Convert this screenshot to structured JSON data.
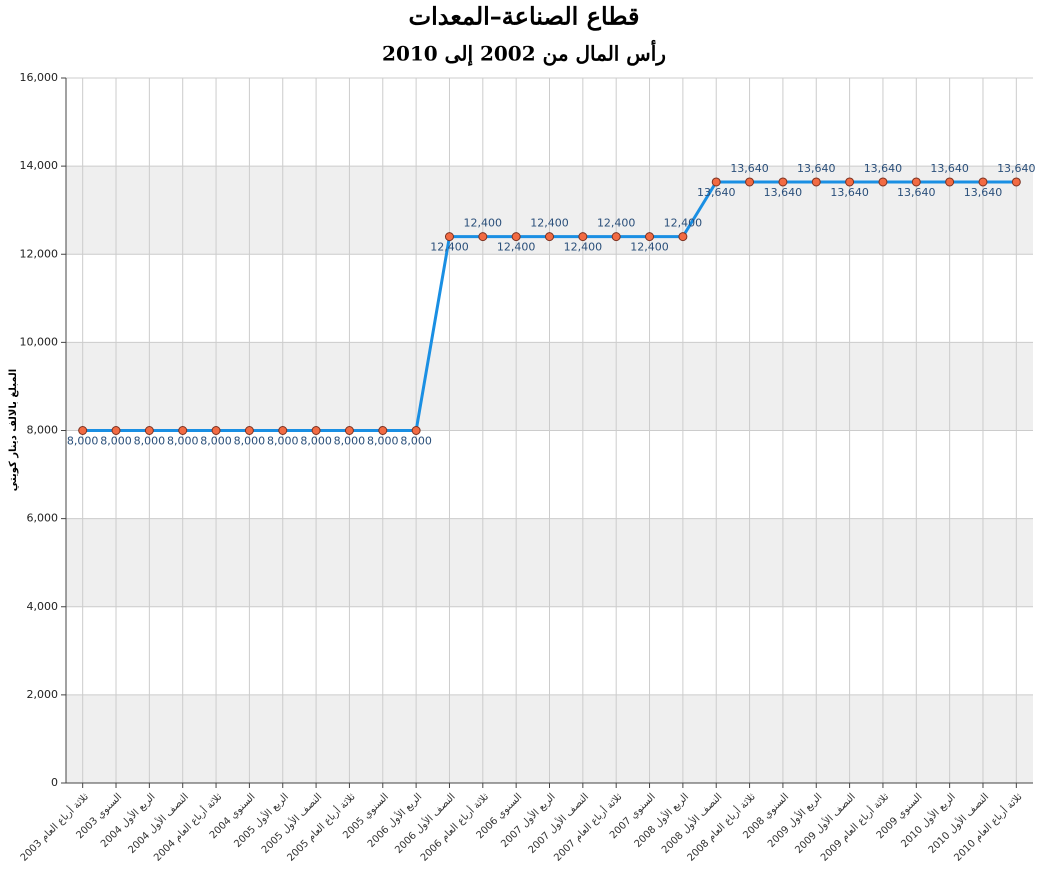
{
  "chart_data": {
    "type": "line",
    "title": "قطاع الصناعة–المعدات",
    "subtitle": "رأس المال من 2002 إلى 2010",
    "y_axis_label": "المبلغ بالالف دينار كويتي",
    "categories": [
      "ثلاثة أرباع العام 2003",
      "السنوي 2003",
      "الربع الأول 2004",
      "النصف الأول 2004",
      "ثلاثة أرباع العام 2004",
      "السنوي 2004",
      "الربع الأول 2005",
      "النصف الأول 2005",
      "ثلاثة أرباع العام 2005",
      "السنوي 2005",
      "الربع الأول 2006",
      "النصف الأول 2006",
      "ثلاثة أرباع العام 2006",
      "السنوي 2006",
      "الربع الأول 2007",
      "النصف الأول 2007",
      "ثلاثة أرباع العام 2007",
      "السنوي 2007",
      "الربع الأول 2008",
      "النصف الأول 2008",
      "ثلاثة أرباع العام 2008",
      "السنوي 2008",
      "الربع الأول 2009",
      "النصف الأول 2009",
      "ثلاثة أرباع العام 2009",
      "السنوي 2009",
      "الربع الأول 2010",
      "النصف الأول 2010",
      "ثلاثة أرباع العام 2010"
    ],
    "values": [
      8000,
      8000,
      8000,
      8000,
      8000,
      8000,
      8000,
      8000,
      8000,
      8000,
      8000,
      12400,
      12400,
      12400,
      12400,
      12400,
      12400,
      12400,
      12400,
      13640,
      13640,
      13640,
      13640,
      13640,
      13640,
      13640,
      13640,
      13640,
      13640
    ],
    "value_labels": [
      "8,000",
      "8,000",
      "8,000",
      "8,000",
      "8,000",
      "8,000",
      "8,000",
      "8,000",
      "8,000",
      "8,000",
      "8,000",
      "12,400",
      "12,400",
      "12,400",
      "12,400",
      "12,400",
      "12,400",
      "12,400",
      "12,400",
      "13,640",
      "13,640",
      "13,640",
      "13,640",
      "13,640",
      "13,640",
      "13,640",
      "13,640",
      "13,640",
      "13,640"
    ],
    "color": "#1a8fe3",
    "marker_color": "#f26b43",
    "ylim": [
      0,
      16000
    ],
    "yticks": [
      0,
      {
        "value": 2000,
        "label": "2,000"
      },
      {
        "value": 4000,
        "label": "4,000"
      },
      {
        "value": 6000,
        "label": "6,000"
      },
      {
        "value": 8000,
        "label": "8,000"
      },
      {
        "value": 10000,
        "label": "10,000"
      },
      {
        "value": 12000,
        "label": "12,000"
      },
      {
        "value": 14000,
        "label": "14,000"
      },
      {
        "value": 16000,
        "label": "16,000"
      }
    ],
    "grid": true
  }
}
